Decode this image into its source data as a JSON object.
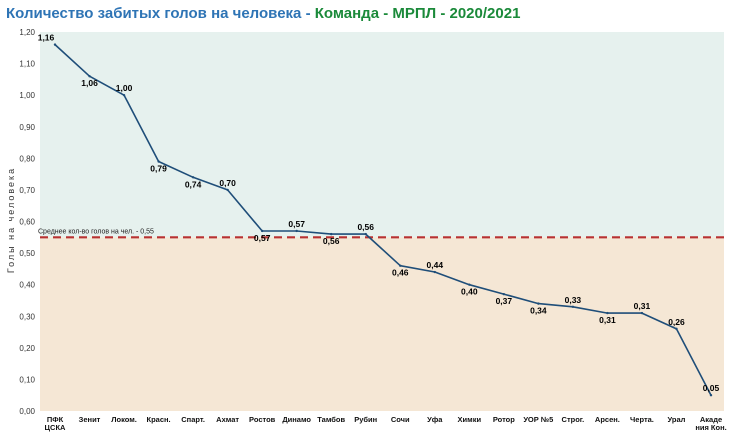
{
  "title": {
    "main": "Количество забитых голов на человека",
    "sep1": " - ",
    "team": "Команда - МРПЛ - 2020/2021"
  },
  "colors": {
    "title_main": "#2e74b5",
    "title_team": "#1b8a3a",
    "band_above": "#e6f1ee",
    "band_below": "#f5e7d5",
    "line": "#1f4e79",
    "average_line": "#b83232"
  },
  "chart_data": {
    "type": "line",
    "title": "Количество забитых голов на человека - Команда - МРПЛ - 2020/2021",
    "ylabel": "Голы на человека",
    "xlabel": "",
    "ylim": [
      0,
      1.2
    ],
    "yticks": [
      "0,00",
      "0,10",
      "0,20",
      "0,30",
      "0,40",
      "0,50",
      "0,60",
      "0,70",
      "0,80",
      "0,90",
      "1,00",
      "1,10",
      "1,20"
    ],
    "categories": [
      [
        "ПФК",
        "ЦСКА"
      ],
      [
        "Зенит"
      ],
      [
        "Локом."
      ],
      [
        "Красн."
      ],
      [
        "Спарт."
      ],
      [
        "Ахмат"
      ],
      [
        "Ростов"
      ],
      [
        "Динамо"
      ],
      [
        "Тамбов"
      ],
      [
        "Рубин"
      ],
      [
        "Сочи"
      ],
      [
        "Уфа"
      ],
      [
        "Химки"
      ],
      [
        "Ротор"
      ],
      [
        "УОР №5"
      ],
      [
        "Строг."
      ],
      [
        "Арсен."
      ],
      [
        "Черта."
      ],
      [
        "Урал"
      ],
      [
        "Акаде",
        "ния Кон."
      ]
    ],
    "values": [
      1.16,
      1.06,
      1.0,
      0.79,
      0.74,
      0.7,
      0.57,
      0.57,
      0.56,
      0.56,
      0.46,
      0.44,
      0.4,
      0.37,
      0.34,
      0.33,
      0.31,
      0.31,
      0.26,
      0.05
    ],
    "value_labels": [
      "1,16",
      "1,06",
      "1,00",
      "0,79",
      "0,74",
      "0,70",
      "0,57",
      "0,57",
      "0,56",
      "0,56",
      "0,46",
      "0,44",
      "0,40",
      "0,37",
      "0,34",
      "0,33",
      "0,31",
      "0,31",
      "0,26",
      "0,05"
    ],
    "label_position": [
      "above",
      "below",
      "above",
      "below",
      "below",
      "above",
      "below",
      "above",
      "below",
      "above",
      "below",
      "above",
      "below",
      "below",
      "below",
      "above",
      "below",
      "above",
      "above",
      "above"
    ],
    "average": {
      "value": 0.55,
      "label": "Среднее кол-во голов на чел. - 0,55"
    },
    "grid": false,
    "legend": "none"
  }
}
